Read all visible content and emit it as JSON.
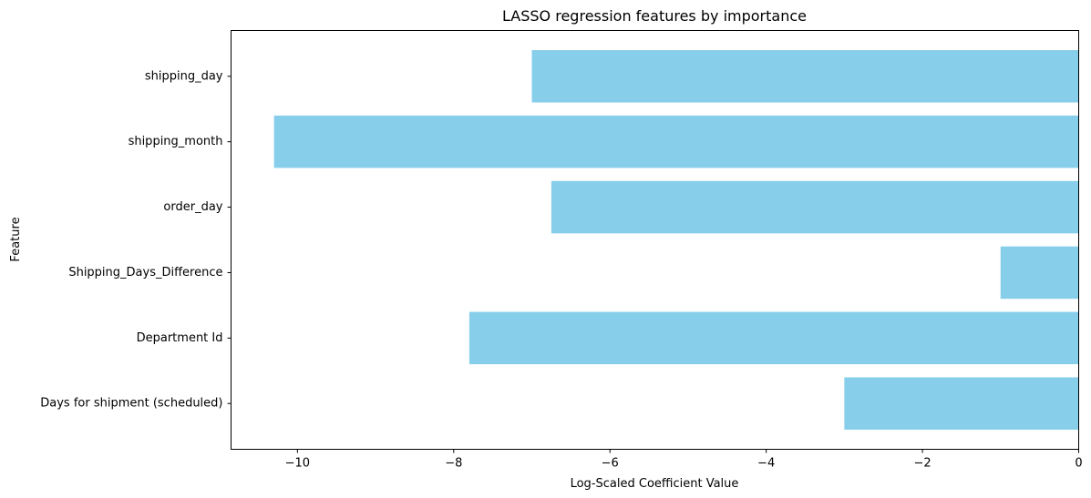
{
  "chart_data": {
    "type": "bar",
    "orientation": "horizontal",
    "title": "LASSO regression features by importance",
    "xlabel": "Log-Scaled Coefficient Value",
    "ylabel": "Feature",
    "categories": [
      "shipping_day",
      "shipping_month",
      "order_day",
      "Shipping_Days_Difference",
      "Department Id",
      "Days for shipment (scheduled)"
    ],
    "values": [
      -7.0,
      -10.3,
      -6.75,
      -1.0,
      -7.8,
      -3.0
    ],
    "xlim": [
      -10.85,
      0
    ],
    "xticks": [
      -10,
      -8,
      -6,
      -4,
      -2,
      0
    ],
    "xtick_labels": [
      "−10",
      "−8",
      "−6",
      "−4",
      "−2",
      "0"
    ],
    "bar_color": "#87ceeb",
    "grid": false,
    "legend": "none"
  }
}
